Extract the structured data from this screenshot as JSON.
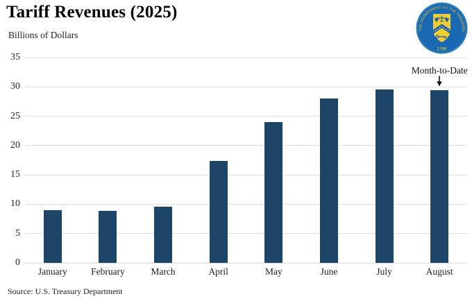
{
  "header": {
    "title": "Tariff Revenues (2025)",
    "subtitle": "Billions of Dollars"
  },
  "annotation": {
    "label": "Month-to-Date",
    "icon": "down-arrow-icon",
    "target_category": "August"
  },
  "logo": {
    "name": "us-treasury-seal",
    "ring_text": "THE DEPARTMENT OF THE TREASURY",
    "year": "1789",
    "colors": {
      "circle_outer": "#2a7cc0",
      "circle_inner": "#1a68b2",
      "accent": "#f5d021",
      "detail": "#1a5ba3"
    }
  },
  "footer": {
    "source": "Source: U.S. Treasury Department"
  },
  "chart_data": {
    "type": "bar",
    "title": "Tariff Revenues (2025)",
    "ylabel": "Billions of Dollars",
    "categories": [
      "January",
      "February",
      "March",
      "April",
      "May",
      "June",
      "July",
      "August"
    ],
    "values": [
      9.0,
      8.9,
      9.6,
      17.4,
      24.0,
      28.0,
      29.6,
      29.5
    ],
    "ylim": [
      0,
      35
    ],
    "yticks": [
      0,
      5,
      10,
      15,
      20,
      25,
      30,
      35
    ],
    "grid": true,
    "legend": "none",
    "bar_color": "#1d4568",
    "gridline_color": "#dedede",
    "annotation": {
      "label": "Month-to-Date",
      "target_category": "August"
    }
  }
}
